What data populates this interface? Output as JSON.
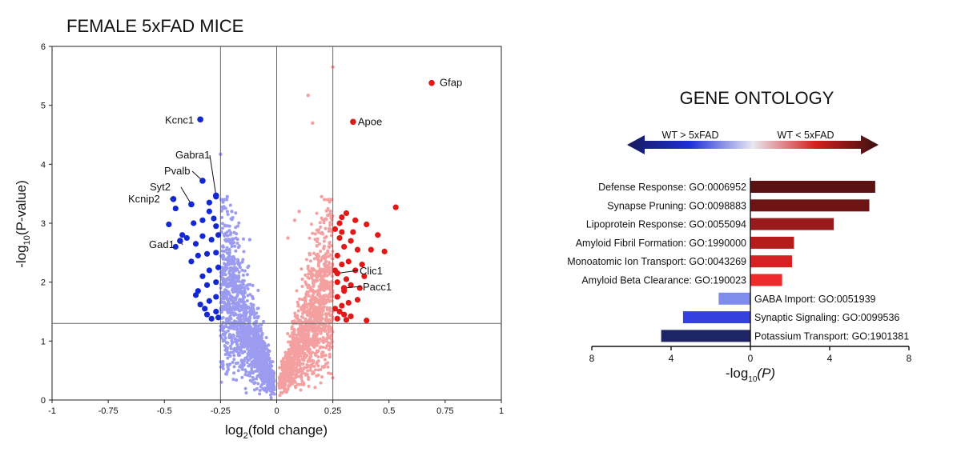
{
  "chart_data": [
    {
      "type": "scatter",
      "title": "FEMALE 5xFAD MICE",
      "xlabel_main": "log",
      "xlabel_sub": "2",
      "xlabel_rest": "(fold change)",
      "ylabel_pre": "-log",
      "ylabel_sub": "10",
      "ylabel_rest": "(P-value)",
      "xlim": [
        -1,
        1
      ],
      "ylim": [
        0,
        6
      ],
      "x_ticks": [
        "-1",
        "-0.75",
        "-0.5",
        "-0.25",
        "0",
        "0.25",
        "0.5",
        "0.75",
        "1"
      ],
      "y_ticks": [
        "0",
        "1",
        "2",
        "3",
        "4",
        "5",
        "6"
      ],
      "x_tick_values": [
        -1,
        -0.75,
        -0.5,
        -0.25,
        0,
        0.25,
        0.5,
        0.75,
        1
      ],
      "y_tick_values": [
        0,
        1,
        2,
        3,
        4,
        5,
        6
      ],
      "thresholds": {
        "fold_change": [
          -0.25,
          0.25
        ],
        "neg_log10_p": 1.3,
        "zero_line": 0
      },
      "colors": {
        "down_sig": "#1428d2",
        "down_ns": "#9b9bf0",
        "up_sig": "#e01818",
        "up_ns": "#f5a0a0"
      },
      "labeled_genes": [
        {
          "name": "Gfap",
          "x": 0.69,
          "y": 5.38,
          "group": "up"
        },
        {
          "name": "Apoe",
          "x": 0.34,
          "y": 4.72,
          "group": "up"
        },
        {
          "name": "Clic1",
          "x": 0.27,
          "y": 2.15,
          "group": "up"
        },
        {
          "name": "Pacc1",
          "x": 0.3,
          "y": 1.9,
          "group": "up"
        },
        {
          "name": "Kcnc1",
          "x": -0.34,
          "y": 4.76,
          "group": "down"
        },
        {
          "name": "Gabra1",
          "x": -0.27,
          "y": 3.47,
          "group": "down"
        },
        {
          "name": "Pvalb",
          "x": -0.33,
          "y": 3.72,
          "group": "down"
        },
        {
          "name": "Syt2",
          "x": -0.38,
          "y": 3.32,
          "group": "down"
        },
        {
          "name": "Kcnip2",
          "x": -0.46,
          "y": 3.41,
          "group": "down"
        },
        {
          "name": "Gad1",
          "x": -0.43,
          "y": 2.7,
          "group": "down"
        }
      ],
      "up_sig_points": [
        [
          0.29,
          3.1
        ],
        [
          0.31,
          3.17
        ],
        [
          0.35,
          3.05
        ],
        [
          0.4,
          2.98
        ],
        [
          0.45,
          2.8
        ],
        [
          0.53,
          3.27
        ],
        [
          0.48,
          2.52
        ],
        [
          0.28,
          2.75
        ],
        [
          0.3,
          2.6
        ],
        [
          0.33,
          2.7
        ],
        [
          0.36,
          2.55
        ],
        [
          0.42,
          2.55
        ],
        [
          0.27,
          2.45
        ],
        [
          0.29,
          2.3
        ],
        [
          0.32,
          2.35
        ],
        [
          0.35,
          2.2
        ],
        [
          0.38,
          2.3
        ],
        [
          0.27,
          2.0
        ],
        [
          0.3,
          1.85
        ],
        [
          0.33,
          1.95
        ],
        [
          0.37,
          1.9
        ],
        [
          0.27,
          1.75
        ],
        [
          0.29,
          1.6
        ],
        [
          0.32,
          1.65
        ],
        [
          0.36,
          1.7
        ],
        [
          0.28,
          1.5
        ],
        [
          0.3,
          1.45
        ],
        [
          0.33,
          1.42
        ],
        [
          0.27,
          1.38
        ],
        [
          0.31,
          1.36
        ],
        [
          0.26,
          2.9
        ],
        [
          0.28,
          3.0
        ],
        [
          0.34,
          2.85
        ],
        [
          0.26,
          1.55
        ],
        [
          0.39,
          2.1
        ],
        [
          0.31,
          2.05
        ],
        [
          0.26,
          2.2
        ],
        [
          0.4,
          1.35
        ],
        [
          0.29,
          2.85
        ]
      ],
      "down_sig_points": [
        [
          -0.27,
          3.45
        ],
        [
          -0.3,
          3.2
        ],
        [
          -0.28,
          3.08
        ],
        [
          -0.33,
          3.05
        ],
        [
          -0.37,
          3.0
        ],
        [
          -0.45,
          3.25
        ],
        [
          -0.48,
          2.98
        ],
        [
          -0.26,
          2.8
        ],
        [
          -0.29,
          2.72
        ],
        [
          -0.33,
          2.78
        ],
        [
          -0.36,
          2.65
        ],
        [
          -0.4,
          2.75
        ],
        [
          -0.45,
          2.6
        ],
        [
          -0.27,
          2.5
        ],
        [
          -0.31,
          2.48
        ],
        [
          -0.35,
          2.45
        ],
        [
          -0.26,
          2.25
        ],
        [
          -0.3,
          2.2
        ],
        [
          -0.33,
          2.1
        ],
        [
          -0.27,
          2.0
        ],
        [
          -0.31,
          1.95
        ],
        [
          -0.35,
          1.85
        ],
        [
          -0.27,
          1.75
        ],
        [
          -0.3,
          1.68
        ],
        [
          -0.34,
          1.62
        ],
        [
          -0.27,
          1.5
        ],
        [
          -0.31,
          1.45
        ],
        [
          -0.26,
          1.4
        ],
        [
          -0.29,
          1.38
        ],
        [
          -0.32,
          1.55
        ],
        [
          -0.38,
          2.35
        ],
        [
          -0.42,
          2.8
        ],
        [
          -0.36,
          1.78
        ],
        [
          -0.27,
          2.95
        ],
        [
          -0.3,
          3.35
        ]
      ],
      "up_ns_outliers": [
        [
          0.14,
          5.17
        ],
        [
          0.16,
          4.7
        ],
        [
          0.25,
          5.65
        ],
        [
          0.1,
          3.2
        ],
        [
          0.08,
          3.05
        ],
        [
          0.2,
          3.45
        ],
        [
          0.05,
          2.75
        ]
      ],
      "down_ns_outliers": [
        [
          -0.22,
          3.45
        ],
        [
          -0.2,
          3.2
        ],
        [
          -0.12,
          2.72
        ],
        [
          -0.25,
          4.17
        ]
      ]
    },
    {
      "type": "bar",
      "orientation": "horizontal",
      "title": "GENE ONTOLOGY",
      "arrow_left_label": "WT > 5xFAD",
      "arrow_right_label": "WT < 5xFAD",
      "xlabel_pre": "-log",
      "xlabel_sub": "10",
      "xlabel_rest": "(P)",
      "xlim": [
        -8,
        8
      ],
      "x_tick_values": [
        -8,
        -4,
        0,
        4,
        8
      ],
      "x_ticks": [
        "8",
        "4",
        "0",
        "4",
        "8"
      ],
      "categories": [
        "Defense Response: GO:0006952",
        "Synapse Pruning: GO:0098883",
        "Lipoprotein Response: GO:0055094",
        "Amyloid Fibril Formation: GO:1990000",
        "Monoatomic Ion Transport: GO:0043269",
        "Amyloid Beta Clearance: GO:190023",
        "GABA Import: GO:0051939",
        "Synaptic Signaling: GO:0099536",
        "Potassium Transport: GO:1901381"
      ],
      "values": [
        6.3,
        6.0,
        4.2,
        2.2,
        2.1,
        1.6,
        -1.6,
        -3.4,
        -4.5
      ],
      "bar_colors": [
        "#5a1212",
        "#6e1414",
        "#961c1c",
        "#b51d1d",
        "#d42222",
        "#ee2a2a",
        "#7f8ced",
        "#3540e0",
        "#1d2566"
      ]
    }
  ]
}
